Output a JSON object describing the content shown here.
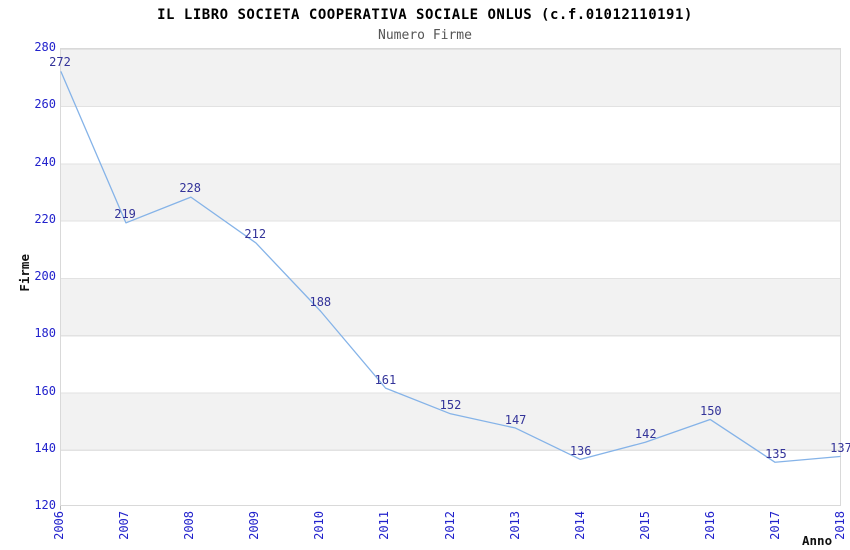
{
  "chart_data": {
    "type": "line",
    "title": "IL LIBRO SOCIETA COOPERATIVA SOCIALE ONLUS (c.f.01012110191)",
    "subtitle": "Numero Firme",
    "xlabel": "Anno",
    "ylabel": "Firme",
    "categories": [
      "2006",
      "2007",
      "2008",
      "2009",
      "2010",
      "2011",
      "2012",
      "2013",
      "2014",
      "2015",
      "2016",
      "2017",
      "2018"
    ],
    "values": [
      272,
      219,
      228,
      212,
      188,
      161,
      152,
      147,
      136,
      142,
      150,
      135,
      137
    ],
    "ylim": [
      120,
      280
    ],
    "yticks": [
      120,
      140,
      160,
      180,
      200,
      220,
      240,
      260,
      280
    ],
    "grid": "horizontal-bands",
    "legend": "none",
    "colors": {
      "line": "#85b3e8",
      "tick_labels": "#2222cc",
      "value_labels": "#333399",
      "title": "#000000",
      "subtitle": "#555555",
      "axis_titles": "#111111",
      "band": "#f2f2f2",
      "gridline": "#e2e2e2",
      "plot_border": "#d9d9d9",
      "background": "#ffffff"
    }
  }
}
